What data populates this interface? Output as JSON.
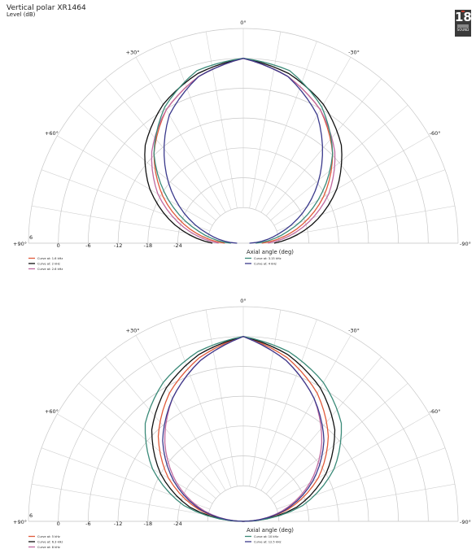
{
  "header": {
    "title": "Vertical polar XR1464",
    "subtitle": "Level  (dB)"
  },
  "logo": {
    "number": "18",
    "text": "SOUND",
    "accent": "#c0392b"
  },
  "chart_data": [
    {
      "type": "polar",
      "rlabels": [
        "0",
        "-6",
        "-12",
        "-18",
        "-24"
      ],
      "rlim": [
        -30,
        0
      ],
      "angle_labels": [
        {
          "deg": 0,
          "text": "0°"
        },
        {
          "deg": 30,
          "text": "+30°"
        },
        {
          "deg": -30,
          "text": "-30°"
        },
        {
          "deg": 60,
          "text": "+60°"
        },
        {
          "deg": -60,
          "text": "-60°"
        },
        {
          "deg": 90,
          "text": "+90°"
        },
        {
          "deg": -90,
          "text": "-90°"
        }
      ],
      "outer_value": "6",
      "xlabel": "Axial angle  (deg)",
      "angles": [
        0,
        15,
        30,
        45,
        60,
        75,
        90
      ],
      "series": [
        {
          "name": "Curve at: 1.6 kHz",
          "color": "#e05a3a",
          "levels": [
            0,
            -2,
            -5,
            -9.5,
            -15,
            -21,
            -27
          ]
        },
        {
          "name": "Curve at: 2 kHz",
          "color": "#111111",
          "levels": [
            0,
            -1.5,
            -4,
            -7.5,
            -12.5,
            -18.5,
            -25
          ]
        },
        {
          "name": "Curve at: 2.6 kHz",
          "color": "#c06aa0",
          "levels": [
            0,
            -2,
            -5,
            -9,
            -14,
            -20,
            -26
          ]
        },
        {
          "name": "Curve at: 3.15 kHz",
          "color": "#3a8a78",
          "levels": [
            0,
            -1,
            -4.5,
            -9.5,
            -16,
            -22.5,
            -28
          ]
        },
        {
          "name": "Curve at: 4 kHz",
          "color": "#3b3a8c",
          "levels": [
            0,
            -2,
            -6,
            -12,
            -18,
            -24,
            -29
          ]
        }
      ]
    },
    {
      "type": "polar",
      "rlabels": [
        "0",
        "-6",
        "-12",
        "-18",
        "-24"
      ],
      "rlim": [
        -30,
        0
      ],
      "angle_labels": [
        {
          "deg": 0,
          "text": "0°"
        },
        {
          "deg": 30,
          "text": "+30°"
        },
        {
          "deg": -30,
          "text": "-30°"
        },
        {
          "deg": 60,
          "text": "+60°"
        },
        {
          "deg": -60,
          "text": "-60°"
        },
        {
          "deg": 90,
          "text": "+90°"
        },
        {
          "deg": -90,
          "text": "-90°"
        }
      ],
      "outer_value": "6",
      "xlabel": "Axial angle  (deg)",
      "angles": [
        0,
        15,
        30,
        45,
        60,
        75,
        90
      ],
      "series": [
        {
          "name": "Curve at: 5 kHz",
          "color": "#e05a3a",
          "levels": [
            0,
            -2.5,
            -6,
            -10.5,
            -16,
            -22.5,
            -30
          ]
        },
        {
          "name": "Curve at: 6.3 kHz",
          "color": "#111111",
          "levels": [
            0,
            -2,
            -5,
            -9,
            -14.5,
            -21,
            -30
          ]
        },
        {
          "name": "Curve at: 8 kHz",
          "color": "#c06aa0",
          "levels": [
            0,
            -3,
            -7,
            -12,
            -17.5,
            -23.5,
            -30
          ]
        },
        {
          "name": "Curve at: 10 kHz",
          "color": "#3a8a78",
          "levels": [
            0,
            -1.5,
            -4,
            -7.5,
            -13,
            -20,
            -30
          ]
        },
        {
          "name": "Curve at: 12.5 kHz",
          "color": "#3b3a8c",
          "levels": [
            0,
            -3,
            -7,
            -11.5,
            -17,
            -23,
            -30
          ]
        }
      ]
    }
  ]
}
